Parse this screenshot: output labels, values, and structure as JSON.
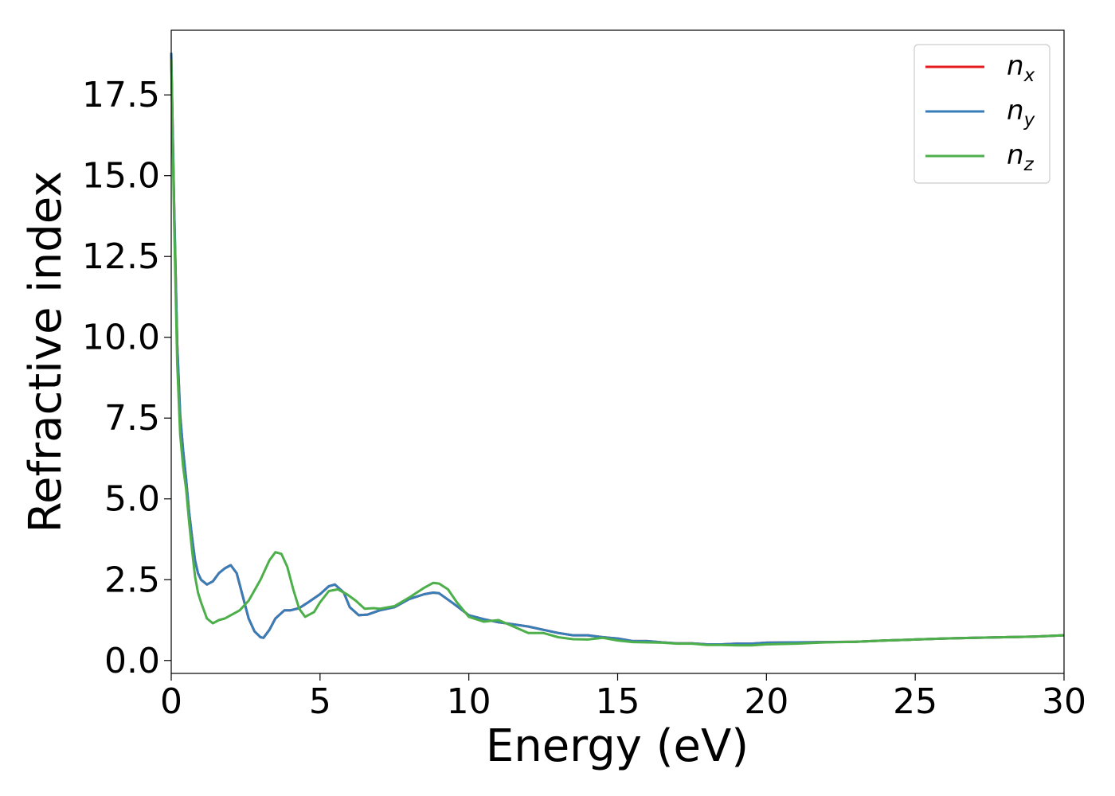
{
  "chart_data": {
    "type": "line",
    "title": "",
    "xlabel": "Energy (eV)",
    "ylabel": "Refractive index",
    "xlim": [
      0,
      30
    ],
    "ylim": [
      -0.4,
      19.5
    ],
    "xticks": [
      0,
      5,
      10,
      15,
      20,
      25,
      30
    ],
    "xtick_labels": [
      "0",
      "5",
      "10",
      "15",
      "20",
      "25",
      "30"
    ],
    "yticks": [
      0.0,
      2.5,
      5.0,
      7.5,
      10.0,
      12.5,
      15.0,
      17.5
    ],
    "ytick_labels": [
      "0.0",
      "2.5",
      "5.0",
      "7.5",
      "10.0",
      "12.5",
      "15.0",
      "17.5"
    ],
    "grid": false,
    "legend_position": "top-right",
    "series": [
      {
        "name": "n",
        "subscript": "x",
        "color": "#e41a1c",
        "x": [
          0,
          0.1,
          0.2,
          0.3,
          0.4,
          0.5,
          0.6,
          0.7,
          0.8,
          0.9,
          1.0,
          1.2,
          1.4,
          1.6,
          1.8,
          2.0,
          2.2,
          2.4,
          2.6,
          2.8,
          3.0,
          3.1,
          3.3,
          3.5,
          3.8,
          4.0,
          4.3,
          4.6,
          5.0,
          5.3,
          5.5,
          5.8,
          6.0,
          6.3,
          6.6,
          7.0,
          7.5,
          8.0,
          8.5,
          8.8,
          9.0,
          9.5,
          10.0,
          10.5,
          11.0,
          11.5,
          12.0,
          12.5,
          13.0,
          13.5,
          14.0,
          14.5,
          15.0,
          15.5,
          16.0,
          16.5,
          17.0,
          17.5,
          18.0,
          18.5,
          19.0,
          19.5,
          20.0,
          21.0,
          22.0,
          23.0,
          24.0,
          25.0,
          26.0,
          27.0,
          28.0,
          29.0,
          30.0
        ],
        "y": [
          18.8,
          14.0,
          9.8,
          7.6,
          6.5,
          5.6,
          4.6,
          3.8,
          3.1,
          2.7,
          2.5,
          2.35,
          2.45,
          2.7,
          2.85,
          2.95,
          2.7,
          2.0,
          1.3,
          0.9,
          0.72,
          0.7,
          0.95,
          1.3,
          1.55,
          1.55,
          1.62,
          1.8,
          2.05,
          2.3,
          2.35,
          2.1,
          1.65,
          1.4,
          1.42,
          1.55,
          1.65,
          1.9,
          2.05,
          2.1,
          2.08,
          1.75,
          1.4,
          1.28,
          1.18,
          1.12,
          1.05,
          0.95,
          0.85,
          0.78,
          0.78,
          0.72,
          0.68,
          0.6,
          0.6,
          0.56,
          0.53,
          0.53,
          0.5,
          0.5,
          0.52,
          0.52,
          0.55,
          0.56,
          0.57,
          0.58,
          0.62,
          0.65,
          0.68,
          0.7,
          0.72,
          0.74,
          0.78
        ]
      },
      {
        "name": "n",
        "subscript": "y",
        "color": "#377eb8",
        "x": [
          0,
          0.1,
          0.2,
          0.3,
          0.4,
          0.5,
          0.6,
          0.7,
          0.8,
          0.9,
          1.0,
          1.2,
          1.4,
          1.6,
          1.8,
          2.0,
          2.2,
          2.4,
          2.6,
          2.8,
          3.0,
          3.1,
          3.3,
          3.5,
          3.8,
          4.0,
          4.3,
          4.6,
          5.0,
          5.3,
          5.5,
          5.8,
          6.0,
          6.3,
          6.6,
          7.0,
          7.5,
          8.0,
          8.5,
          8.8,
          9.0,
          9.5,
          10.0,
          10.5,
          11.0,
          11.5,
          12.0,
          12.5,
          13.0,
          13.5,
          14.0,
          14.5,
          15.0,
          15.5,
          16.0,
          16.5,
          17.0,
          17.5,
          18.0,
          18.5,
          19.0,
          19.5,
          20.0,
          21.0,
          22.0,
          23.0,
          24.0,
          25.0,
          26.0,
          27.0,
          28.0,
          29.0,
          30.0
        ],
        "y": [
          18.8,
          14.0,
          9.8,
          7.6,
          6.5,
          5.6,
          4.6,
          3.8,
          3.1,
          2.7,
          2.5,
          2.35,
          2.45,
          2.7,
          2.85,
          2.95,
          2.7,
          2.0,
          1.3,
          0.9,
          0.72,
          0.7,
          0.95,
          1.3,
          1.55,
          1.55,
          1.62,
          1.8,
          2.05,
          2.3,
          2.35,
          2.1,
          1.65,
          1.4,
          1.42,
          1.55,
          1.65,
          1.9,
          2.05,
          2.1,
          2.08,
          1.75,
          1.4,
          1.28,
          1.18,
          1.12,
          1.05,
          0.95,
          0.85,
          0.78,
          0.78,
          0.72,
          0.68,
          0.6,
          0.6,
          0.56,
          0.53,
          0.53,
          0.5,
          0.5,
          0.52,
          0.52,
          0.55,
          0.56,
          0.57,
          0.58,
          0.62,
          0.65,
          0.68,
          0.7,
          0.72,
          0.74,
          0.78
        ]
      },
      {
        "name": "n",
        "subscript": "z",
        "color": "#4daf4a",
        "x": [
          0,
          0.1,
          0.2,
          0.3,
          0.4,
          0.5,
          0.6,
          0.7,
          0.8,
          0.9,
          1.0,
          1.2,
          1.4,
          1.6,
          1.8,
          2.0,
          2.3,
          2.6,
          3.0,
          3.3,
          3.5,
          3.7,
          3.9,
          4.1,
          4.3,
          4.5,
          4.8,
          5.0,
          5.3,
          5.6,
          5.9,
          6.2,
          6.5,
          6.8,
          7.0,
          7.5,
          8.0,
          8.5,
          8.8,
          9.0,
          9.3,
          9.6,
          10.0,
          10.5,
          11.0,
          11.5,
          12.0,
          12.5,
          13.0,
          13.5,
          14.0,
          14.5,
          15.0,
          15.5,
          16.0,
          16.5,
          17.0,
          17.5,
          18.0,
          18.5,
          19.0,
          19.5,
          20.0,
          21.0,
          22.0,
          23.0,
          24.0,
          25.0,
          26.0,
          27.0,
          28.0,
          29.0,
          30.0
        ],
        "y": [
          18.6,
          13.5,
          9.2,
          7.0,
          6.0,
          5.3,
          4.3,
          3.4,
          2.6,
          2.1,
          1.8,
          1.3,
          1.15,
          1.25,
          1.3,
          1.4,
          1.55,
          1.85,
          2.5,
          3.1,
          3.35,
          3.3,
          2.9,
          2.2,
          1.6,
          1.35,
          1.5,
          1.8,
          2.15,
          2.2,
          2.05,
          1.85,
          1.6,
          1.62,
          1.6,
          1.68,
          1.95,
          2.25,
          2.4,
          2.38,
          2.2,
          1.8,
          1.35,
          1.2,
          1.25,
          1.05,
          0.85,
          0.85,
          0.72,
          0.66,
          0.65,
          0.7,
          0.62,
          0.57,
          0.56,
          0.55,
          0.52,
          0.52,
          0.48,
          0.48,
          0.47,
          0.47,
          0.5,
          0.52,
          0.56,
          0.58,
          0.62,
          0.65,
          0.68,
          0.7,
          0.72,
          0.74,
          0.78
        ]
      }
    ]
  }
}
